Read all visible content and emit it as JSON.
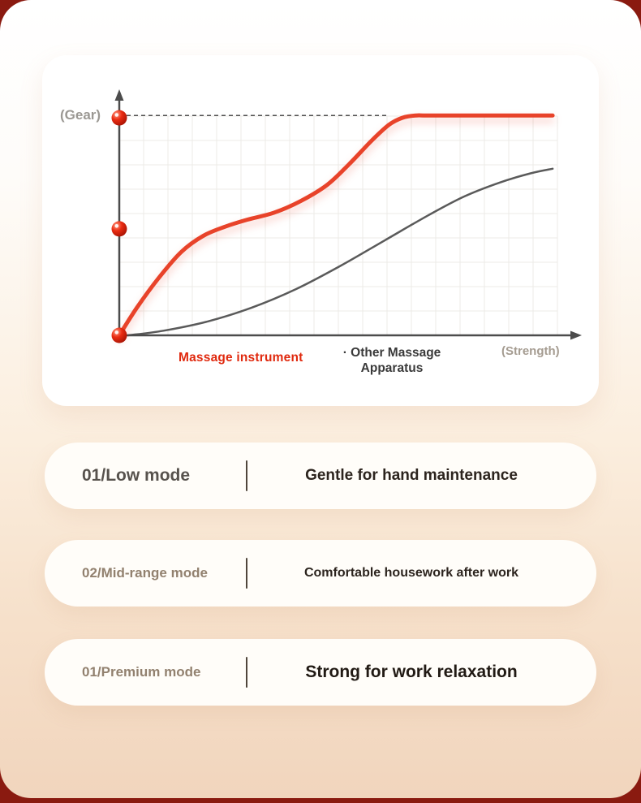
{
  "colors": {
    "accent_red": "#e8432a",
    "maroon_background": "#8a1a10",
    "axis_dark_gray": "#4c4c4c",
    "marker_red": "#e02412"
  },
  "chart": {
    "y_axis_label": "(Gear)",
    "x_axis_label": "(Strength)",
    "legend": {
      "series1": "Massage instrument",
      "series2_line1": "·  Other Massage",
      "series2_line2": "Apparatus"
    }
  },
  "chart_data": {
    "type": "line",
    "title": "",
    "xlabel": "(Strength)",
    "ylabel": "(Gear)",
    "x_range": [
      0,
      100
    ],
    "y_range": [
      0,
      100
    ],
    "grid": true,
    "legend_position": "bottom",
    "dashed_reference_y": 95,
    "series": [
      {
        "name": "Massage instrument",
        "color": "#e8432a",
        "points": [
          [
            0,
            0
          ],
          [
            4,
            12
          ],
          [
            9,
            25
          ],
          [
            14,
            36
          ],
          [
            19,
            43
          ],
          [
            24,
            47
          ],
          [
            29,
            50
          ],
          [
            35,
            53
          ],
          [
            41,
            58
          ],
          [
            47,
            65
          ],
          [
            52,
            74
          ],
          [
            57,
            84
          ],
          [
            61,
            91
          ],
          [
            64,
            94
          ],
          [
            67,
            95
          ],
          [
            72,
            95
          ],
          [
            98,
            95
          ]
        ]
      },
      {
        "name": "Other Massage Apparatus",
        "color": "#5a5a5a",
        "points": [
          [
            2,
            0
          ],
          [
            10,
            2
          ],
          [
            20,
            6
          ],
          [
            30,
            12
          ],
          [
            40,
            20
          ],
          [
            50,
            30
          ],
          [
            60,
            41
          ],
          [
            70,
            52
          ],
          [
            78,
            60
          ],
          [
            86,
            66
          ],
          [
            93,
            70
          ],
          [
            98,
            72
          ]
        ]
      }
    ],
    "markers": {
      "color": "#e02412",
      "y_values": [
        0,
        46,
        94
      ]
    }
  },
  "cards": [
    {
      "mode": "01/Low mode",
      "desc": "Gentle for hand maintenance"
    },
    {
      "mode": "02/Mid-range mode",
      "desc": "Comfortable housework after work"
    },
    {
      "mode": "01/Premium mode",
      "desc": "Strong for work relaxation"
    }
  ]
}
